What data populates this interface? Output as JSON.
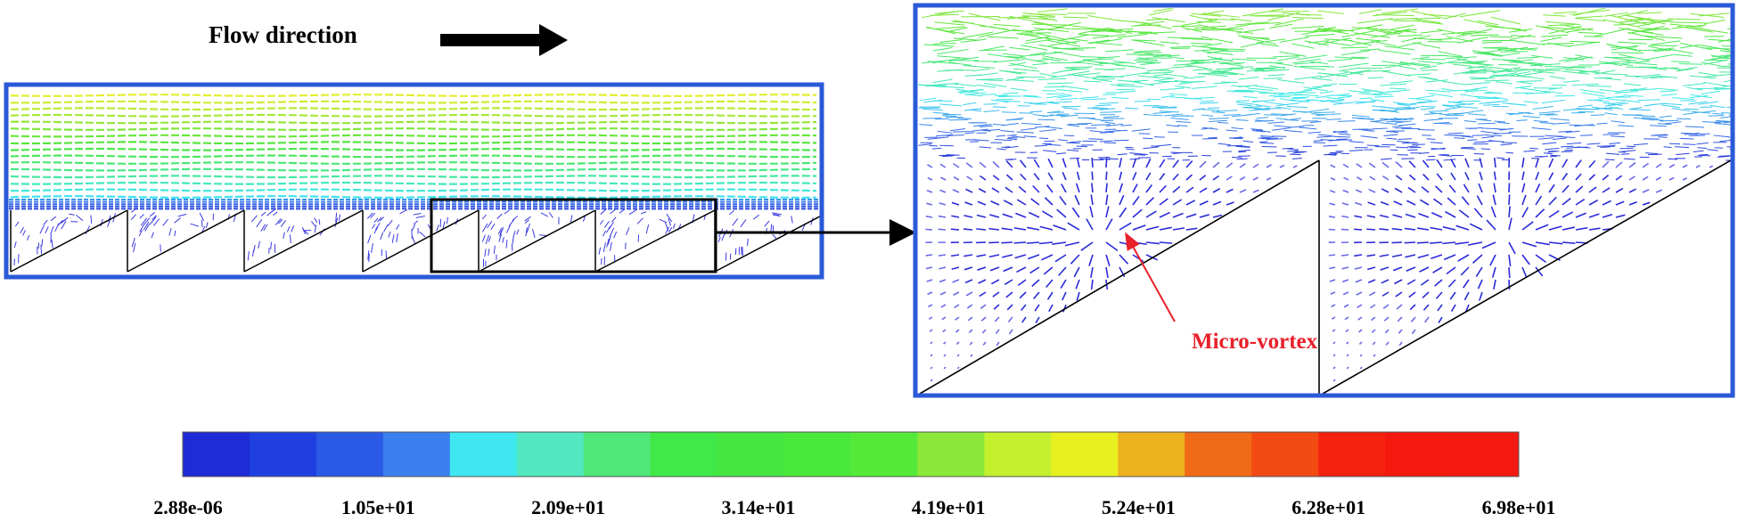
{
  "header": {
    "flow_label": "Flow direction"
  },
  "annotation": {
    "label": "Micro-vortex"
  },
  "colorbar": {
    "colors": [
      "#1f2bd6",
      "#1f3fe0",
      "#2a5ae6",
      "#3a80ee",
      "#3fe8f0",
      "#52e8c0",
      "#4fe878",
      "#40e848",
      "#45e640",
      "#4ae83a",
      "#55ea38",
      "#8ce838",
      "#c4f02e",
      "#e8f020",
      "#eeb21e",
      "#f06a18",
      "#f24a12",
      "#f4220e",
      "#f4180e",
      "#f41a12"
    ],
    "tick_labels": [
      "2.88e-06",
      "1.05e+01",
      "2.09e+01",
      "3.14e+01",
      "4.19e+01",
      "5.24e+01",
      "6.28e+01",
      "6.98e+01"
    ]
  }
}
